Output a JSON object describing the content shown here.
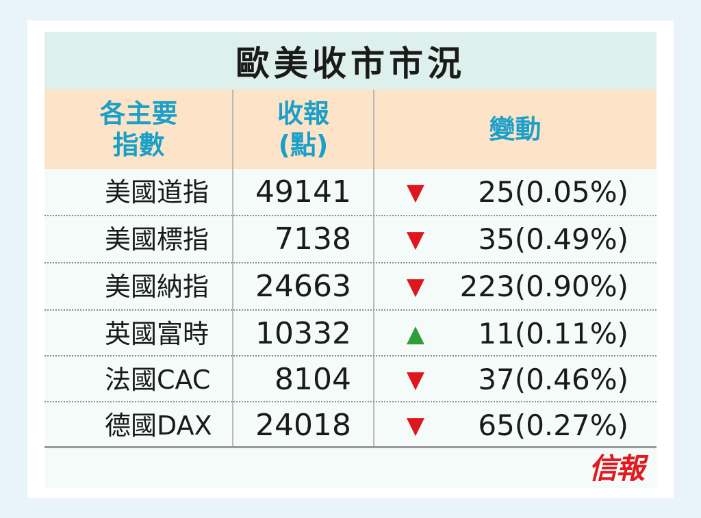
{
  "title": "歐美收市市況",
  "headers": {
    "index_line1": "各主要",
    "index_line2": "指數",
    "close_line1": "收報",
    "close_line2": "(點)",
    "change": "變動"
  },
  "rows": [
    {
      "name": "美國道指",
      "close": "49141",
      "direction": "down",
      "arrow": "▼",
      "change": "25(0.05%)"
    },
    {
      "name": "美國標指",
      "close": "7138",
      "direction": "down",
      "arrow": "▼",
      "change": "35(0.49%)"
    },
    {
      "name": "美國納指",
      "close": "24663",
      "direction": "down",
      "arrow": "▼",
      "change": "223(0.90%)"
    },
    {
      "name": "英國富時",
      "close": "10332",
      "direction": "up",
      "arrow": "▲",
      "change": "11(0.11%)"
    },
    {
      "name": "法國CAC",
      "close": "8104",
      "direction": "down",
      "arrow": "▼",
      "change": "37(0.46%)"
    },
    {
      "name": "德國DAX",
      "close": "24018",
      "direction": "down",
      "arrow": "▼",
      "change": "65(0.27%)"
    }
  ],
  "logo": "信報",
  "colors": {
    "header_bg": "#fde3c7",
    "title_bg": "#ddf0ec",
    "header_text": "#1aa0c8",
    "down": "#e0161e",
    "up": "#2e9d3a",
    "logo": "#e01a1f"
  }
}
